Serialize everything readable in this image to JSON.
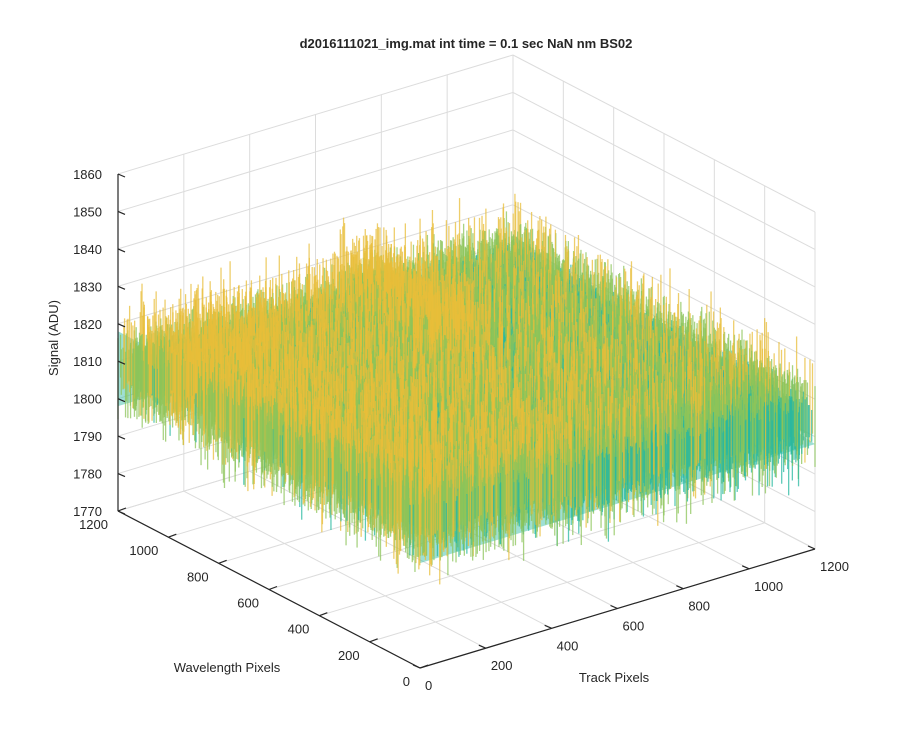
{
  "chart_data": {
    "type": "surface",
    "title": "d2016111021_img.mat int time = 0.1 sec  NaN nm BS02",
    "xlabel": "Track Pixels",
    "ylabel": "Wavelength Pixels",
    "zlabel": "Signal (ADU)",
    "xlim": [
      0,
      1200
    ],
    "ylim": [
      0,
      1200
    ],
    "zlim": [
      1770,
      1860
    ],
    "x_ticks": [
      "0",
      "200",
      "400",
      "600",
      "800",
      "1000",
      "1200"
    ],
    "y_ticks": [
      "0",
      "200",
      "400",
      "600",
      "800",
      "1000",
      "1200"
    ],
    "z_ticks": [
      "1770",
      "1780",
      "1790",
      "1800",
      "1810",
      "1820",
      "1830",
      "1840",
      "1850",
      "1860"
    ],
    "grid": true,
    "colormap": "parula",
    "colors": [
      "#0a5fd8",
      "#1ea0d6",
      "#28b8a0",
      "#8cc45a",
      "#e8bd3a"
    ],
    "surface_summary": {
      "x_range": [
        0,
        1200
      ],
      "y_range": [
        0,
        1200
      ],
      "z_mean": 1808,
      "z_noise_band": [
        1775,
        1850
      ]
    }
  }
}
